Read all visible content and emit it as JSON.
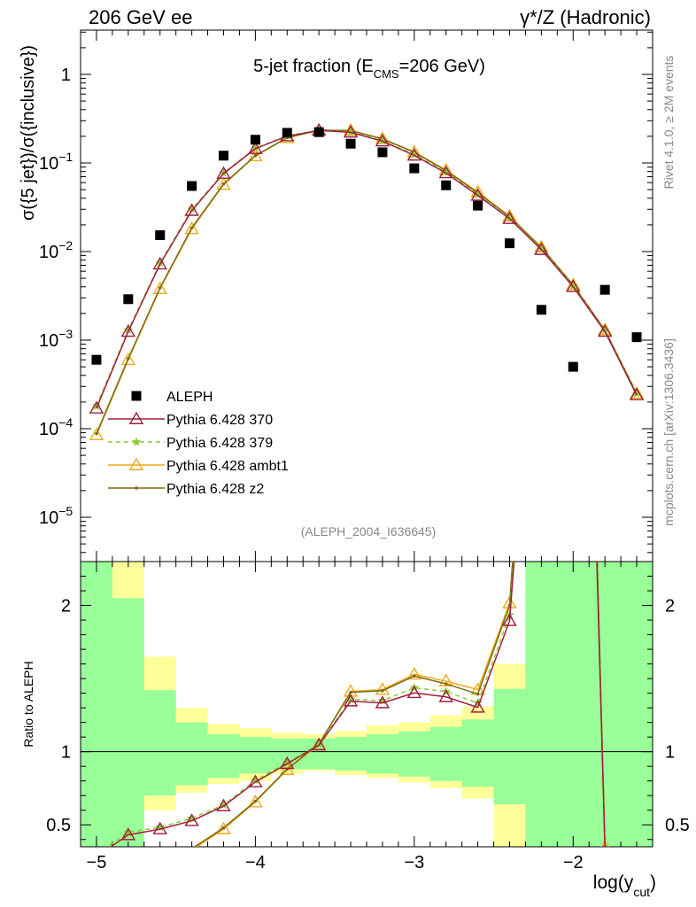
{
  "header": {
    "left": "206 GeV ee",
    "right": "γ*/Z (Hadronic)"
  },
  "side_labels": {
    "rivet": "Rivet 4.1.0, ≥ 2M events",
    "mcplots": "mcplots.cern.ch [arXiv:1306.3436]"
  },
  "chart_data": {
    "type": "line",
    "title_main": "5-jet fraction (E",
    "title_sub": "CMS",
    "title_end": "=206 GeV)",
    "analysis_id": "(ALEPH_2004_I636645)",
    "xlabel_main": "log(y",
    "xlabel_sub": "cut",
    "xlabel_end": ")",
    "ylabel": "σ({5 jet})/σ({inclusive})",
    "ratio_ylabel": "Ratio to ALEPH",
    "xlim": [
      -5.1,
      -1.5
    ],
    "ylim_log": [
      -5.5,
      0.5
    ],
    "ratio_ylim": [
      0.35,
      2.3
    ],
    "x_ticks": [
      -5,
      -4,
      -3,
      -2
    ],
    "x_tick_labels": [
      "−5",
      "−4",
      "−3",
      "−2"
    ],
    "y_ticks": [
      0,
      -1,
      -2,
      -3,
      -4,
      -5
    ],
    "y_tick_labels": [
      {
        "base": "1",
        "exp": ""
      },
      {
        "base": "10",
        "exp": "−1"
      },
      {
        "base": "10",
        "exp": "−2"
      },
      {
        "base": "10",
        "exp": "−3"
      },
      {
        "base": "10",
        "exp": "−4"
      },
      {
        "base": "10",
        "exp": "−5"
      }
    ],
    "ratio_ticks": [
      0.5,
      1,
      2
    ],
    "ratio_tick_labels": [
      "0.5",
      "1",
      "2"
    ],
    "x": [
      -5.0,
      -4.8,
      -4.6,
      -4.4,
      -4.2,
      -4.0,
      -3.8,
      -3.6,
      -3.4,
      -3.2,
      -3.0,
      -2.8,
      -2.6,
      -2.4,
      -2.2,
      -2.0,
      -1.8,
      -1.6
    ],
    "data": {
      "name": "ALEPH",
      "values": [
        0.0006,
        0.0029,
        0.0153,
        0.055,
        0.121,
        0.183,
        0.219,
        0.223,
        0.165,
        0.132,
        0.087,
        0.056,
        0.033,
        0.0124,
        0.0022,
        0.0005,
        0.0037,
        0.00108
      ]
    },
    "series": [
      {
        "name": "Pythia 6.428 370",
        "color": "#a01e3c",
        "marker": "triangle-open",
        "dash": "",
        "values": [
          0.00017,
          0.00125,
          0.0072,
          0.029,
          0.076,
          0.145,
          0.201,
          0.233,
          0.222,
          0.176,
          0.122,
          0.077,
          0.043,
          0.0235,
          0.0105,
          0.004,
          0.00125,
          0.00024
        ]
      },
      {
        "name": "Pythia 6.428 379",
        "color": "#88cc33",
        "marker": "star",
        "dash": "5,4",
        "values": [
          0.00018,
          0.0013,
          0.0074,
          0.03,
          0.077,
          0.147,
          0.203,
          0.234,
          0.224,
          0.178,
          0.125,
          0.079,
          0.044,
          0.024,
          0.0108,
          0.0041,
          0.00128,
          0.00025
        ]
      },
      {
        "name": "Pythia 6.428 ambt1",
        "color": "#f0a818",
        "marker": "triangle-open",
        "dash": "",
        "values": [
          8.5e-05,
          0.0006,
          0.0038,
          0.018,
          0.057,
          0.12,
          0.192,
          0.234,
          0.233,
          0.188,
          0.133,
          0.083,
          0.047,
          0.025,
          0.0112,
          0.0042,
          0.0013,
          0.00025
        ]
      },
      {
        "name": "Pythia 6.428 z2",
        "color": "#7a6a10",
        "marker": "dot",
        "dash": "",
        "values": [
          8.8e-05,
          0.00062,
          0.0039,
          0.0185,
          0.058,
          0.121,
          0.193,
          0.235,
          0.232,
          0.187,
          0.132,
          0.082,
          0.046,
          0.0248,
          0.0111,
          0.0042,
          0.0013,
          0.00025
        ]
      }
    ],
    "ratio_band_bins": [
      -5.1,
      -4.9,
      -4.7,
      -4.5,
      -4.3,
      -4.1,
      -3.9,
      -3.7,
      -3.5,
      -3.3,
      -3.1,
      -2.9,
      -2.7,
      -2.5,
      -2.3,
      -2.1,
      -1.9,
      -1.7,
      -1.5
    ],
    "ratio_green": [
      [
        0.35,
        2.3
      ],
      [
        0.35,
        2.05
      ],
      [
        0.7,
        1.42
      ],
      [
        0.77,
        1.2
      ],
      [
        0.82,
        1.12
      ],
      [
        0.85,
        1.1
      ],
      [
        0.88,
        1.09
      ],
      [
        0.88,
        1.09
      ],
      [
        0.87,
        1.1
      ],
      [
        0.85,
        1.12
      ],
      [
        0.83,
        1.14
      ],
      [
        0.8,
        1.17
      ],
      [
        0.76,
        1.22
      ],
      [
        0.64,
        1.43
      ],
      [
        0.35,
        2.3
      ],
      [
        0.35,
        2.3
      ],
      [
        0.35,
        2.3
      ],
      [
        0.35,
        2.3
      ]
    ],
    "ratio_yellow": [
      [
        0.35,
        2.3
      ],
      [
        0.35,
        2.3
      ],
      [
        0.6,
        1.65
      ],
      [
        0.72,
        1.3
      ],
      [
        0.78,
        1.19
      ],
      [
        0.8,
        1.16
      ],
      [
        0.85,
        1.13
      ],
      [
        0.87,
        1.12
      ],
      [
        0.84,
        1.14
      ],
      [
        0.82,
        1.18
      ],
      [
        0.79,
        1.2
      ],
      [
        0.75,
        1.25
      ],
      [
        0.68,
        1.31
      ],
      [
        0.35,
        1.6
      ],
      [
        0.35,
        2.3
      ],
      [
        0.35,
        2.3
      ],
      [
        0.35,
        2.3
      ],
      [
        0.35,
        2.3
      ]
    ],
    "legend_position": "lower-left"
  }
}
